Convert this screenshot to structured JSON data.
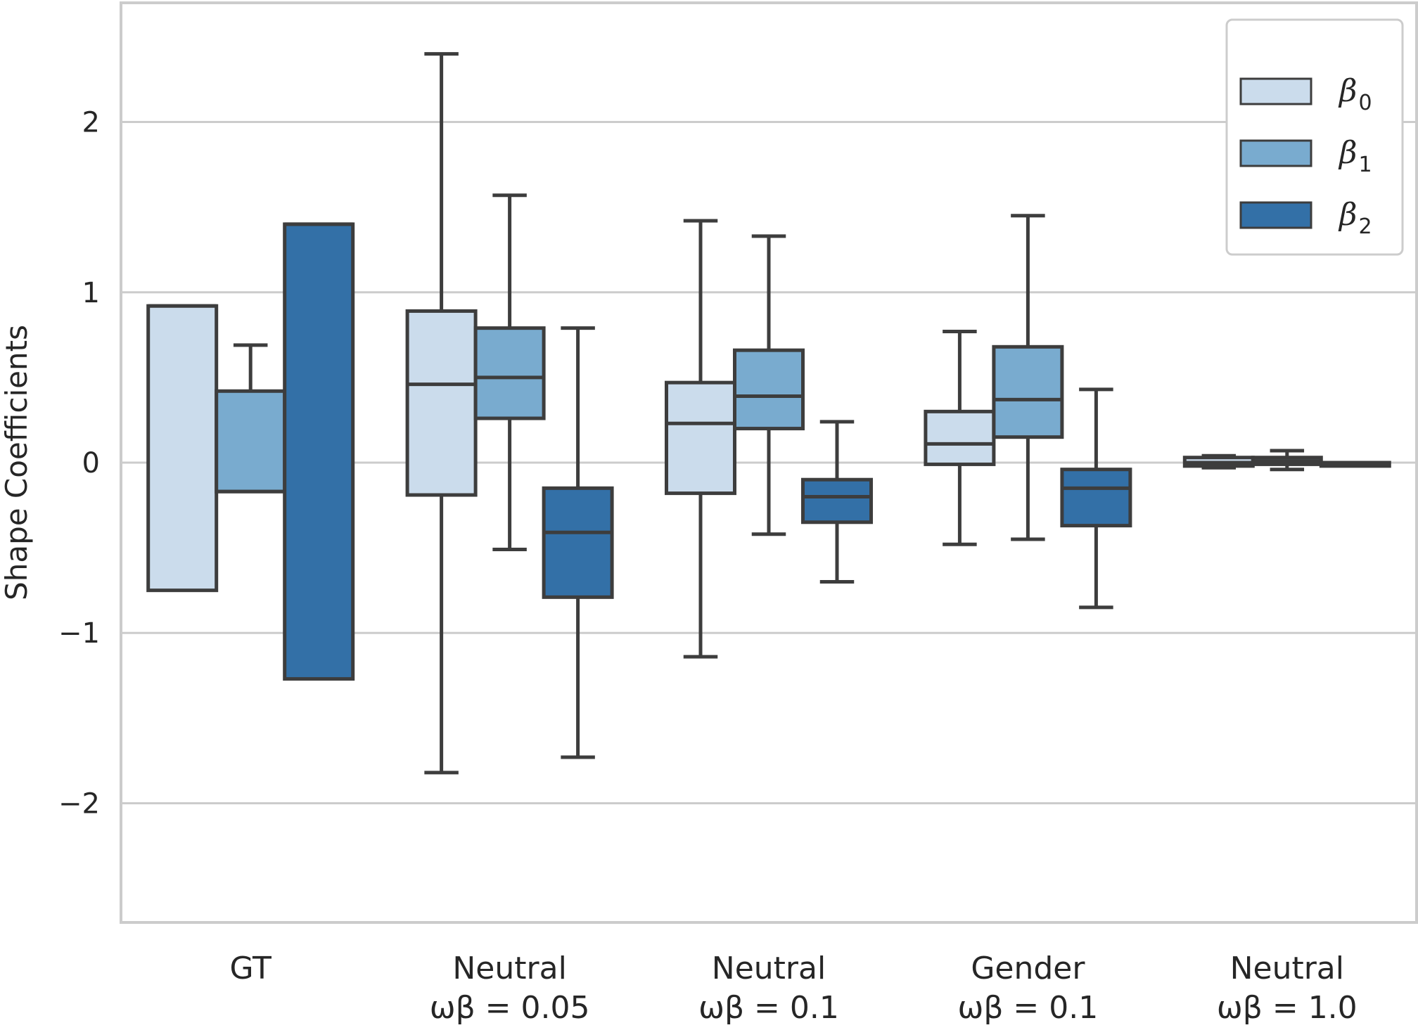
{
  "chart_data": {
    "type": "box",
    "ylabel": "Shape Coefficients",
    "ylim": [
      -2.7,
      2.7
    ],
    "yticks": [
      2,
      1,
      0,
      -1,
      -2
    ],
    "ytick_labels": [
      "2",
      "1",
      "0",
      "−1",
      "−2"
    ],
    "grid": "horizontal",
    "legend_position": "top-right",
    "categories": [
      {
        "line1": "GT",
        "line2": ""
      },
      {
        "line1": "Neutral",
        "line2": "ωβ = 0.05"
      },
      {
        "line1": "Neutral",
        "line2": "ωβ = 0.1"
      },
      {
        "line1": "Gender",
        "line2": "ωβ = 0.1"
      },
      {
        "line1": "Neutral",
        "line2": "ωβ = 1.0"
      }
    ],
    "series": [
      {
        "name": "β0",
        "legend_base": "β",
        "legend_sub": "0",
        "color": "#cbdcec",
        "boxes": [
          {
            "min": -0.75,
            "q1": -0.75,
            "median": 0.92,
            "q3": 0.92,
            "max": 0.92
          },
          {
            "min": -1.82,
            "q1": -0.19,
            "median": 0.46,
            "q3": 0.89,
            "max": 2.4
          },
          {
            "min": -1.14,
            "q1": -0.18,
            "median": 0.23,
            "q3": 0.47,
            "max": 1.42
          },
          {
            "min": -0.48,
            "q1": -0.01,
            "median": 0.11,
            "q3": 0.3,
            "max": 0.77
          },
          {
            "min": -0.03,
            "q1": -0.02,
            "median": 0.0,
            "q3": 0.03,
            "max": 0.04
          }
        ]
      },
      {
        "name": "β1",
        "legend_base": "β",
        "legend_sub": "1",
        "color": "#79abcf",
        "boxes": [
          {
            "min": -0.17,
            "q1": -0.17,
            "median": -0.17,
            "q3": 0.42,
            "max": 0.69
          },
          {
            "min": -0.51,
            "q1": 0.26,
            "median": 0.5,
            "q3": 0.79,
            "max": 1.57
          },
          {
            "min": -0.42,
            "q1": 0.2,
            "median": 0.39,
            "q3": 0.66,
            "max": 1.33
          },
          {
            "min": -0.45,
            "q1": 0.15,
            "median": 0.37,
            "q3": 0.68,
            "max": 1.45
          },
          {
            "min": -0.04,
            "q1": -0.01,
            "median": 0.01,
            "q3": 0.03,
            "max": 0.07
          }
        ]
      },
      {
        "name": "β2",
        "legend_base": "β",
        "legend_sub": "2",
        "color": "#3370a7",
        "boxes": [
          {
            "min": -1.27,
            "q1": -1.27,
            "median": 1.4,
            "q3": 1.4,
            "max": 1.4
          },
          {
            "min": -1.73,
            "q1": -0.79,
            "median": -0.41,
            "q3": -0.15,
            "max": 0.79
          },
          {
            "min": -0.7,
            "q1": -0.35,
            "median": -0.2,
            "q3": -0.1,
            "max": 0.24
          },
          {
            "min": -0.85,
            "q1": -0.37,
            "median": -0.15,
            "q3": -0.04,
            "max": 0.43
          },
          {
            "min": -0.02,
            "q1": -0.02,
            "median": -0.01,
            "q3": 0.0,
            "max": 0.0
          }
        ]
      }
    ]
  }
}
